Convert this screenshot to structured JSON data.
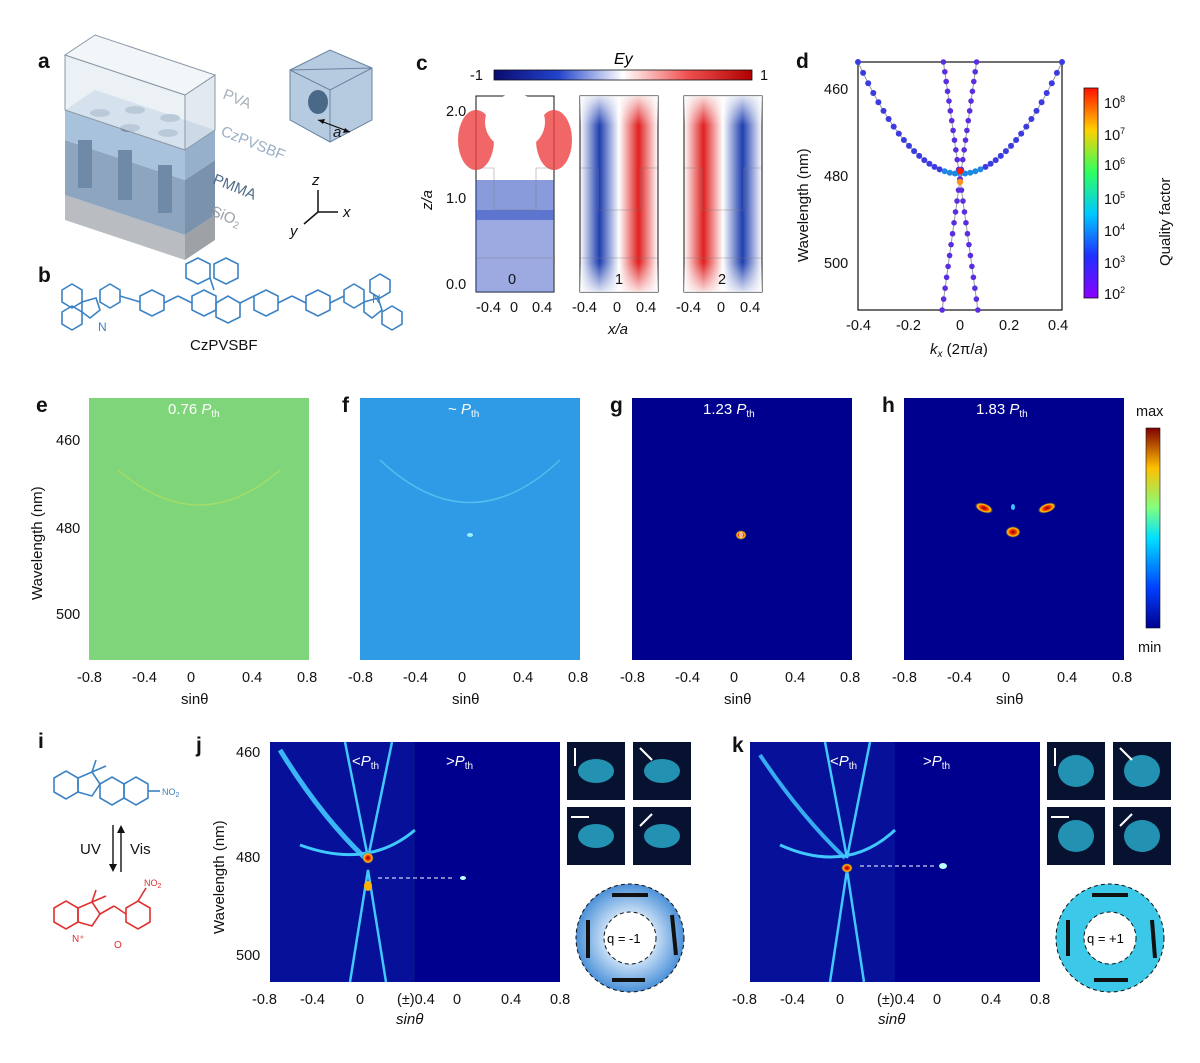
{
  "labels": {
    "a": "a",
    "b": "b",
    "c": "c",
    "d": "d",
    "e": "e",
    "f": "f",
    "g": "g",
    "h": "h",
    "i": "i",
    "j": "j",
    "k": "k"
  },
  "panel_a": {
    "layers": [
      "PVA",
      "CzPVSBF",
      "PMMA",
      "SiO2"
    ],
    "lattice_label": "a",
    "axes": {
      "z": "z",
      "x": "x",
      "y": "y"
    }
  },
  "panel_b": {
    "molecule_name": "CzPVSBF"
  },
  "panel_c": {
    "colorbar_title": "Ey",
    "colorbar_min": "-1",
    "colorbar_max": "1",
    "ylabel": "z/a",
    "xlabel": "x/a",
    "yticks": [
      "2.0",
      "1.0",
      "0.0"
    ],
    "xticks": [
      "-0.4",
      "0",
      "0.4"
    ],
    "mode_labels": [
      "0",
      "1",
      "2"
    ]
  },
  "panel_d": {
    "xlabel": "kx (2π/a)",
    "ylabel": "Wavelength (nm)",
    "xticks": [
      "-0.4",
      "-0.2",
      "0",
      "0.2",
      "0.4"
    ],
    "yticks": [
      "460",
      "480",
      "500"
    ],
    "cbar_label": "Quality factor",
    "cbar_ticks": [
      "10^8",
      "10^7",
      "10^6",
      "10^5",
      "10^4",
      "10^3",
      "10^2"
    ]
  },
  "spectra": {
    "ylabel": "Wavelength (nm)",
    "xlabel": "sinθ",
    "xticks": [
      "-0.8",
      "-0.4",
      "0",
      "0.4",
      "0.8"
    ],
    "yticks": [
      "460",
      "480",
      "500"
    ],
    "titles": [
      "0.76 Pth",
      "~ Pth",
      "1.23 Pth",
      "1.83 Pth"
    ],
    "cbar_max": "max",
    "cbar_min": "min"
  },
  "panel_i": {
    "uv": "UV",
    "vis": "Vis"
  },
  "panel_jk": {
    "left_title": "<Pth",
    "right_title": ">Pth",
    "xticks": [
      "-0.8",
      "-0.4",
      "0",
      "(±)0.4",
      "0",
      "0.4",
      "0.8"
    ],
    "xlabel": "sinθ",
    "ylabel": "Wavelength (nm)",
    "yticks": [
      "460",
      "480",
      "500"
    ],
    "q_j": "q = -1",
    "q_k": "q = +1"
  },
  "chart_data": [
    {
      "type": "scatter",
      "panel": "d",
      "xlabel": "kx (2π/a)",
      "ylabel": "Wavelength (nm)",
      "xlim": [
        -0.4,
        0.4
      ],
      "ylim": [
        510,
        455
      ],
      "series": [
        {
          "values_note": "parabolic band",
          "x": [
            -0.4,
            -0.3,
            -0.2,
            -0.1,
            0,
            0.1,
            0.2,
            0.3,
            0.4
          ],
          "y": [
            455,
            466.5,
            474,
            478.2,
            479.8,
            478.2,
            474,
            466.5,
            455
          ]
        },
        {
          "values_note": "linear bands",
          "x": [
            -0.07,
            -0.035,
            0,
            0.035,
            0.07
          ],
          "y": [
            510,
            495,
            481,
            495,
            510
          ]
        }
      ],
      "colorbar": {
        "label": "Quality factor",
        "range": [
          "10^2",
          "10^8"
        ]
      }
    }
  ]
}
